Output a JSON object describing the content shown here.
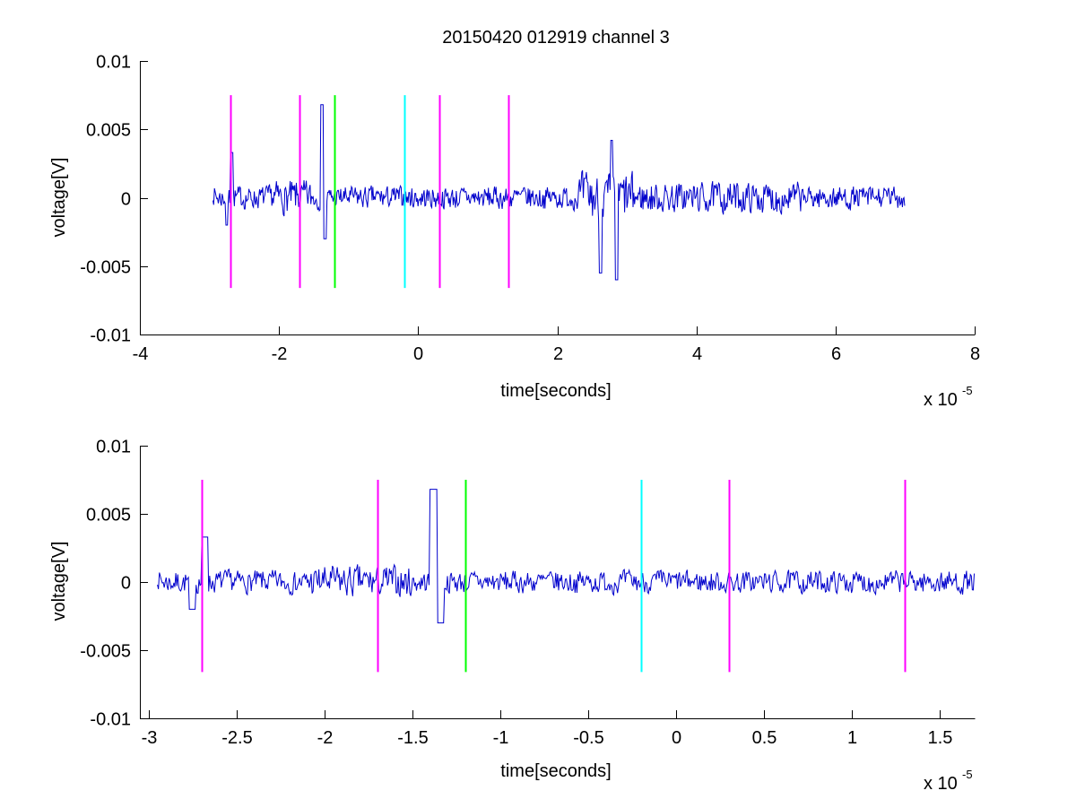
{
  "figure_title": "20150420 012919 channel 3",
  "colors": {
    "signal": "#0000cc",
    "marker_magenta": "#ff00ff",
    "marker_green": "#00ff00",
    "marker_cyan": "#00ffff",
    "axes": "#000000"
  },
  "chart_data": [
    {
      "type": "line",
      "title": "20150420 012919 channel 3",
      "xlabel": "time[seconds]",
      "ylabel": "voltage[V]",
      "x_scale_label": "x 10",
      "x_scale_exponent": "-5",
      "xlim": [
        -4,
        8
      ],
      "ylim": [
        -0.01,
        0.01
      ],
      "xticks": [
        "-4",
        "-2",
        "0",
        "2",
        "4",
        "6",
        "8"
      ],
      "yticks": [
        "-0.01",
        "-0.005",
        "0",
        "0.005",
        "0.01"
      ],
      "signal_range": [
        -2.95,
        7.0
      ],
      "signal_seed": 7,
      "markers": [
        {
          "x": -2.7,
          "color": "magenta",
          "ymin": -0.0066,
          "ymax": 0.0075
        },
        {
          "x": -1.7,
          "color": "magenta",
          "ymin": -0.0066,
          "ymax": 0.0075
        },
        {
          "x": -1.2,
          "color": "green",
          "ymin": -0.0066,
          "ymax": 0.0075
        },
        {
          "x": -0.2,
          "color": "cyan",
          "ymin": -0.0066,
          "ymax": 0.0075
        },
        {
          "x": 0.3,
          "color": "magenta",
          "ymin": -0.0066,
          "ymax": 0.0075
        },
        {
          "x": 1.3,
          "color": "magenta",
          "ymin": -0.0066,
          "ymax": 0.0075
        }
      ],
      "grid": false
    },
    {
      "type": "line",
      "title": "",
      "xlabel": "time[seconds]",
      "ylabel": "voltage[V]",
      "x_scale_label": "x 10",
      "x_scale_exponent": "-5",
      "xlim": [
        -3.05,
        1.7
      ],
      "ylim": [
        -0.01,
        0.01
      ],
      "xticks": [
        "-3",
        "-2.5",
        "-2",
        "-1.5",
        "-1",
        "-0.5",
        "0",
        "0.5",
        "1",
        "1.5"
      ],
      "yticks": [
        "-0.01",
        "-0.005",
        "0",
        "0.005",
        "0.01"
      ],
      "signal_range": [
        -2.95,
        1.7
      ],
      "signal_seed": 7,
      "markers": [
        {
          "x": -2.7,
          "color": "magenta",
          "ymin": -0.0066,
          "ymax": 0.0075
        },
        {
          "x": -1.7,
          "color": "magenta",
          "ymin": -0.0066,
          "ymax": 0.0075
        },
        {
          "x": -1.2,
          "color": "green",
          "ymin": -0.0066,
          "ymax": 0.0075
        },
        {
          "x": -0.2,
          "color": "cyan",
          "ymin": -0.0066,
          "ymax": 0.0075
        },
        {
          "x": 0.3,
          "color": "magenta",
          "ymin": -0.0066,
          "ymax": 0.0075
        },
        {
          "x": 1.3,
          "color": "magenta",
          "ymin": -0.0066,
          "ymax": 0.0075
        }
      ],
      "grid": false
    }
  ]
}
